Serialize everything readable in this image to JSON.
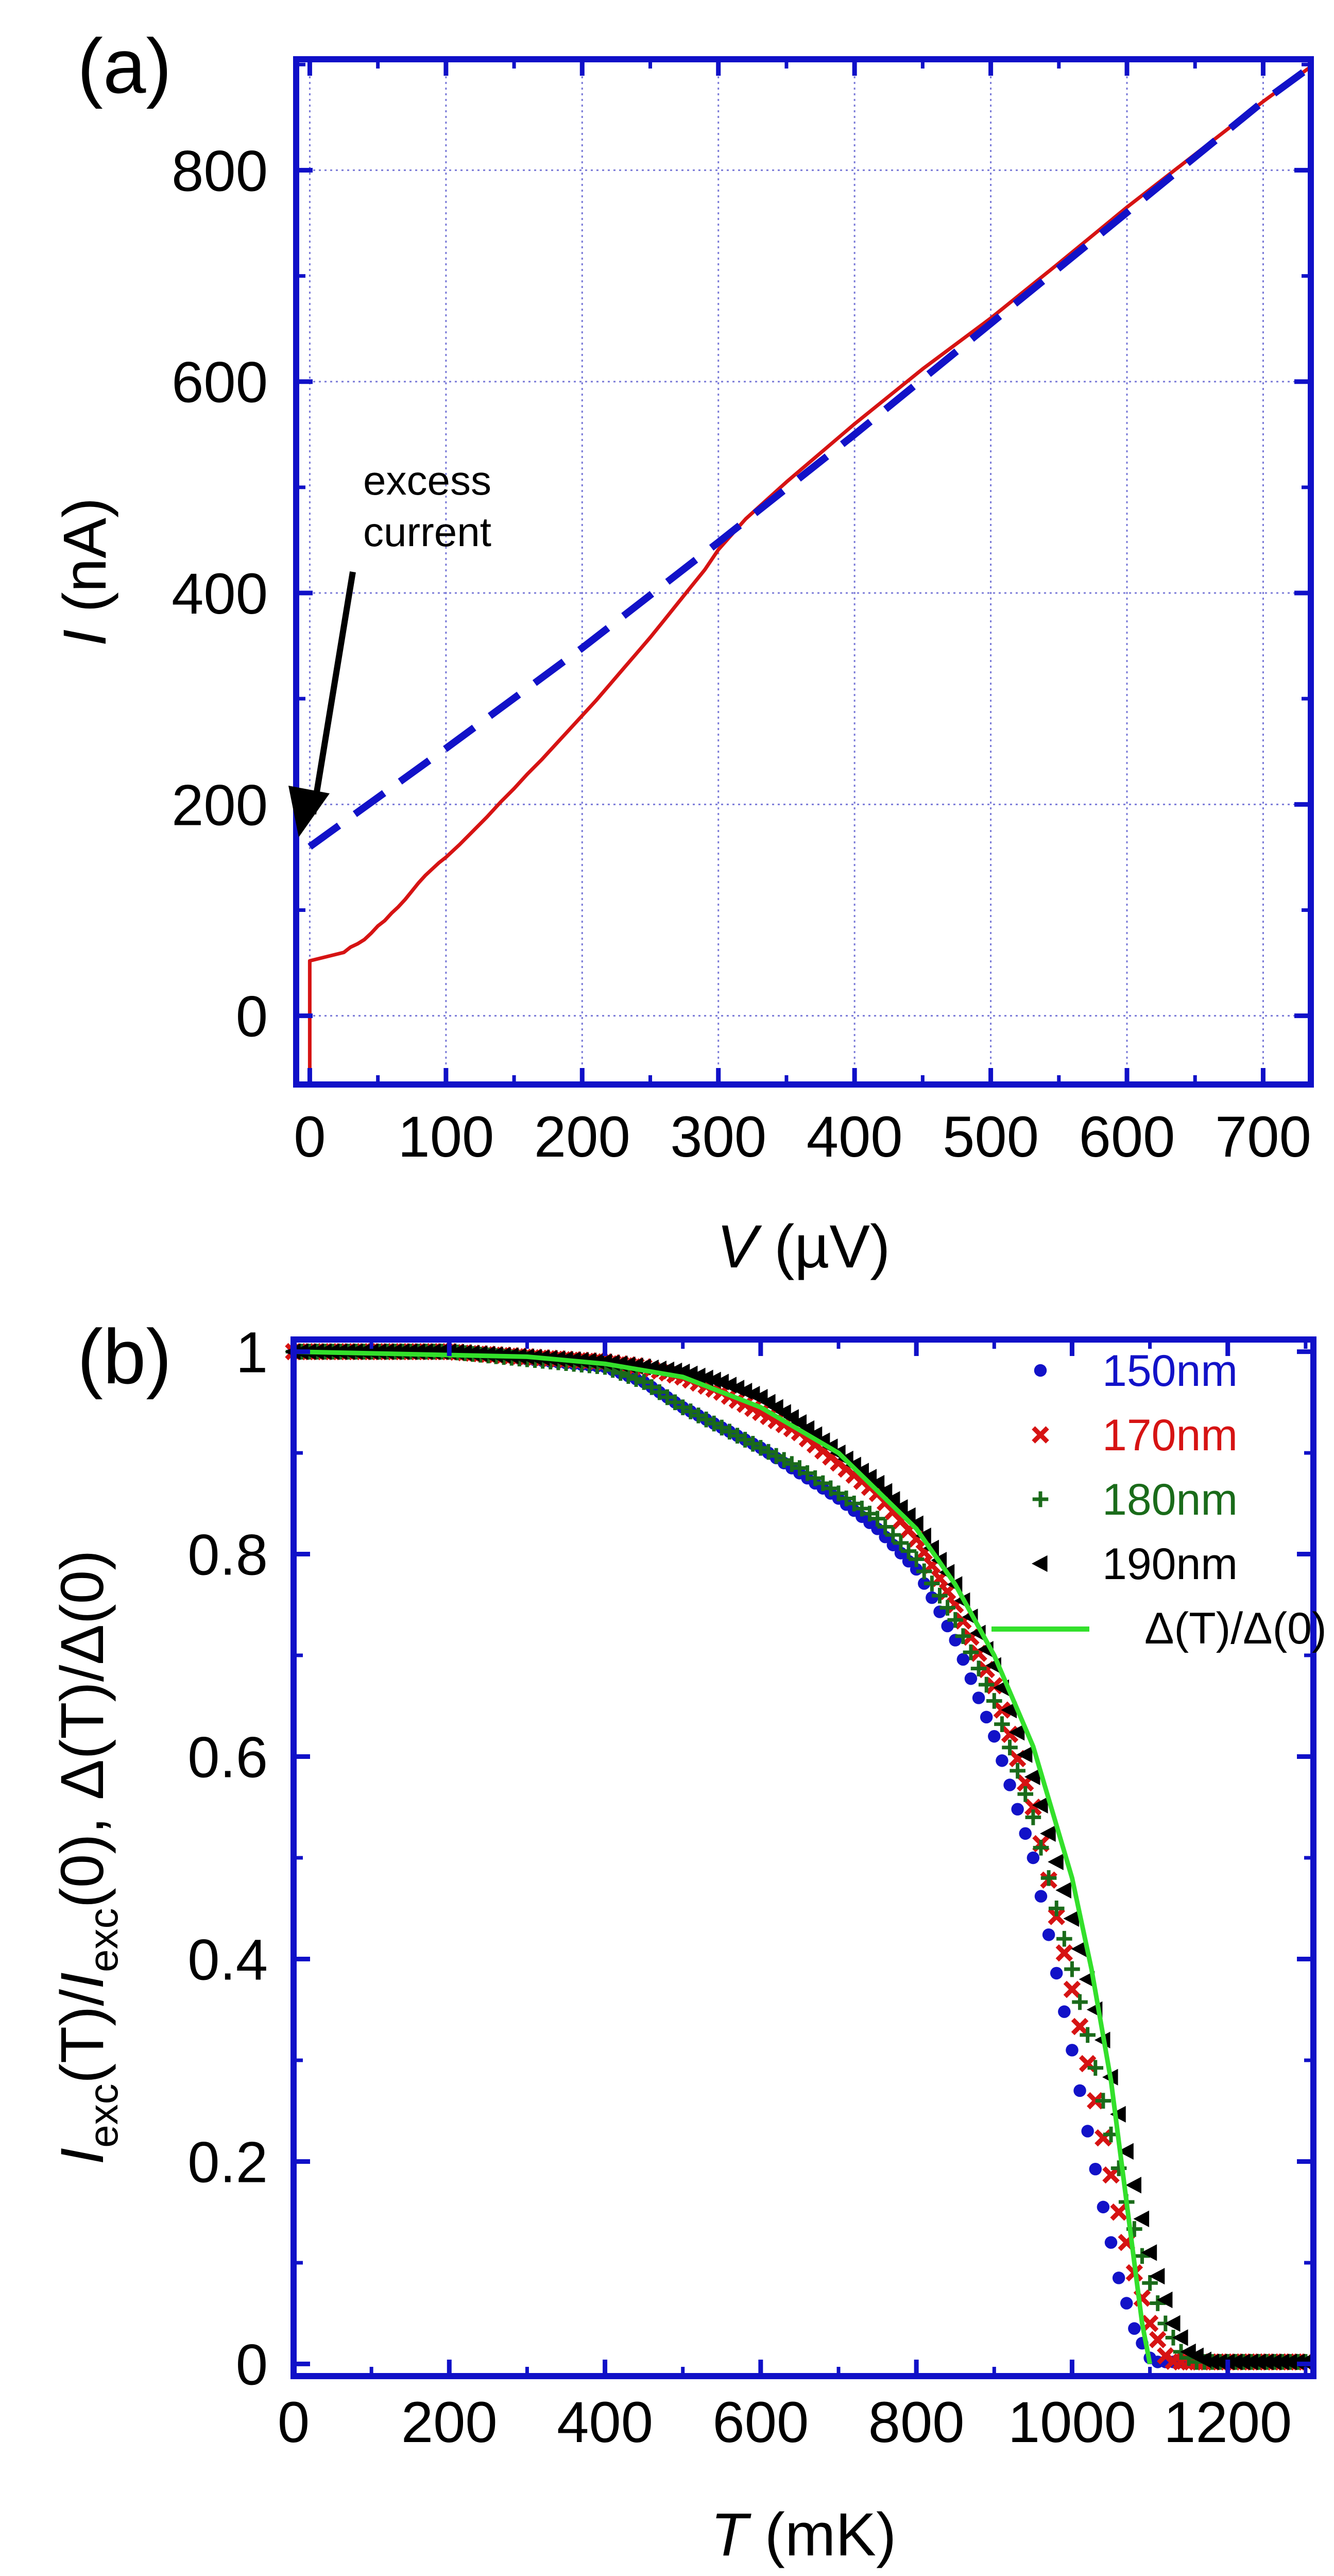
{
  "panels": {
    "a": {
      "label": "(a)"
    },
    "b": {
      "label": "(b)"
    }
  },
  "colors": {
    "frame": "#1010c8",
    "grid": "#7b7bd8",
    "red": "#d61313",
    "blue": "#1212c8",
    "green_dark": "#1a6b1a",
    "black": "#000000",
    "green_bright": "#33e02b"
  },
  "chart_data": [
    {
      "type": "line",
      "xlabel_italic": "V",
      "xlabel_unit": " (µV)",
      "ylabel_italic": "I",
      "ylabel_unit": " (nA)",
      "xlim": [
        -10,
        735
      ],
      "ylim": [
        -65,
        905
      ],
      "xticks": [
        0,
        100,
        200,
        300,
        400,
        500,
        600,
        700
      ],
      "yticks": [
        0,
        200,
        400,
        600,
        800
      ],
      "grid": true,
      "annotation": {
        "lines": [
          "excess",
          "current"
        ],
        "arrow_target": [
          -8,
          170
        ]
      },
      "series": [
        {
          "style": "red-solid",
          "x": [
            0,
            0,
            0,
            25,
            30,
            35,
            40,
            45,
            50,
            55,
            60,
            65,
            70,
            75,
            80,
            85,
            90,
            95,
            100,
            110,
            120,
            130,
            140,
            150,
            160,
            170,
            180,
            190,
            200,
            210,
            220,
            230,
            240,
            250,
            260,
            270,
            280,
            290,
            300,
            320,
            350,
            400,
            450,
            500,
            550,
            600,
            650,
            700,
            735
          ],
          "y": [
            -55,
            52,
            52,
            60,
            65,
            68,
            72,
            78,
            85,
            90,
            97,
            103,
            110,
            118,
            126,
            133,
            139,
            145,
            150,
            162,
            175,
            188,
            202,
            215,
            229,
            242,
            256,
            270,
            284,
            298,
            313,
            328,
            343,
            358,
            374,
            390,
            406,
            422,
            441,
            470,
            505,
            560,
            612,
            660,
            712,
            765,
            815,
            865,
            898
          ]
        },
        {
          "style": "blue-dashed",
          "x": [
            0,
            100,
            200,
            300,
            400,
            500,
            600,
            700,
            735
          ],
          "y": [
            160,
            253,
            348,
            448,
            550,
            655,
            760,
            865,
            898
          ]
        }
      ]
    },
    {
      "type": "scatter",
      "xlabel_italic": "T",
      "xlabel_unit": " (mK)",
      "ylabel_html": "I_exc(T)/I_exc(0), Δ(T)/Δ(0)",
      "xlim": [
        0,
        1310
      ],
      "ylim": [
        -0.012,
        1.012
      ],
      "xticks": [
        0,
        200,
        400,
        600,
        800,
        1000,
        1200
      ],
      "yticks": [
        0,
        0.2,
        0.4,
        0.6,
        0.8,
        1
      ],
      "ytick_labels": [
        "0",
        "0.2",
        "0.4",
        "0.6",
        "0.8",
        "1"
      ],
      "grid": false,
      "legend_position": "top-right",
      "series": [
        {
          "name": "150nm",
          "marker": "circle",
          "Tc": 1115,
          "x": [
            0,
            200,
            400,
            450,
            500,
            550,
            600,
            650,
            700,
            750,
            800,
            850,
            900,
            950,
            1000,
            1020,
            1040,
            1060,
            1080,
            1100,
            1115
          ],
          "y": [
            1.0,
            1.0,
            0.985,
            0.97,
            0.945,
            0.925,
            0.905,
            0.88,
            0.855,
            0.825,
            0.785,
            0.715,
            0.62,
            0.5,
            0.31,
            0.23,
            0.155,
            0.085,
            0.035,
            0.006,
            0.0
          ]
        },
        {
          "name": "170nm",
          "marker": "x",
          "Tc": 1135,
          "x": [
            0,
            200,
            400,
            450,
            500,
            550,
            600,
            650,
            700,
            750,
            800,
            850,
            900,
            950,
            1000,
            1030,
            1060,
            1080,
            1100,
            1120,
            1135
          ],
          "y": [
            1.0,
            1.0,
            0.99,
            0.985,
            0.975,
            0.96,
            0.94,
            0.92,
            0.89,
            0.86,
            0.815,
            0.75,
            0.67,
            0.55,
            0.37,
            0.26,
            0.15,
            0.09,
            0.04,
            0.008,
            0.0
          ]
        },
        {
          "name": "180nm",
          "marker": "plus",
          "Tc": 1160,
          "x": [
            0,
            200,
            400,
            450,
            500,
            550,
            600,
            650,
            700,
            750,
            800,
            850,
            900,
            950,
            1000,
            1040,
            1070,
            1100,
            1120,
            1140,
            1160
          ],
          "y": [
            1.0,
            1.0,
            0.985,
            0.97,
            0.945,
            0.925,
            0.905,
            0.885,
            0.86,
            0.835,
            0.795,
            0.735,
            0.655,
            0.54,
            0.39,
            0.26,
            0.16,
            0.08,
            0.04,
            0.012,
            0.0
          ]
        },
        {
          "name": "190nm",
          "marker": "triangle-left",
          "Tc": 1180,
          "x": [
            0,
            200,
            400,
            450,
            500,
            550,
            600,
            650,
            700,
            750,
            800,
            850,
            900,
            950,
            1000,
            1040,
            1070,
            1100,
            1130,
            1150,
            1180
          ],
          "y": [
            1.0,
            1.0,
            0.99,
            0.985,
            0.98,
            0.97,
            0.955,
            0.93,
            0.9,
            0.87,
            0.83,
            0.77,
            0.69,
            0.58,
            0.44,
            0.32,
            0.21,
            0.11,
            0.04,
            0.012,
            0.0
          ]
        },
        {
          "name": "Δ(T)/Δ(0)",
          "marker": "line",
          "Tc": 1100,
          "x": [
            0,
            300,
            400,
            500,
            600,
            700,
            800,
            850,
            900,
            950,
            1000,
            1025,
            1050,
            1075,
            1090,
            1100
          ],
          "y": [
            1.0,
            0.995,
            0.988,
            0.975,
            0.945,
            0.9,
            0.825,
            0.77,
            0.7,
            0.61,
            0.48,
            0.39,
            0.28,
            0.13,
            0.04,
            0.0
          ]
        }
      ],
      "baseline_end_x": 1300
    }
  ]
}
